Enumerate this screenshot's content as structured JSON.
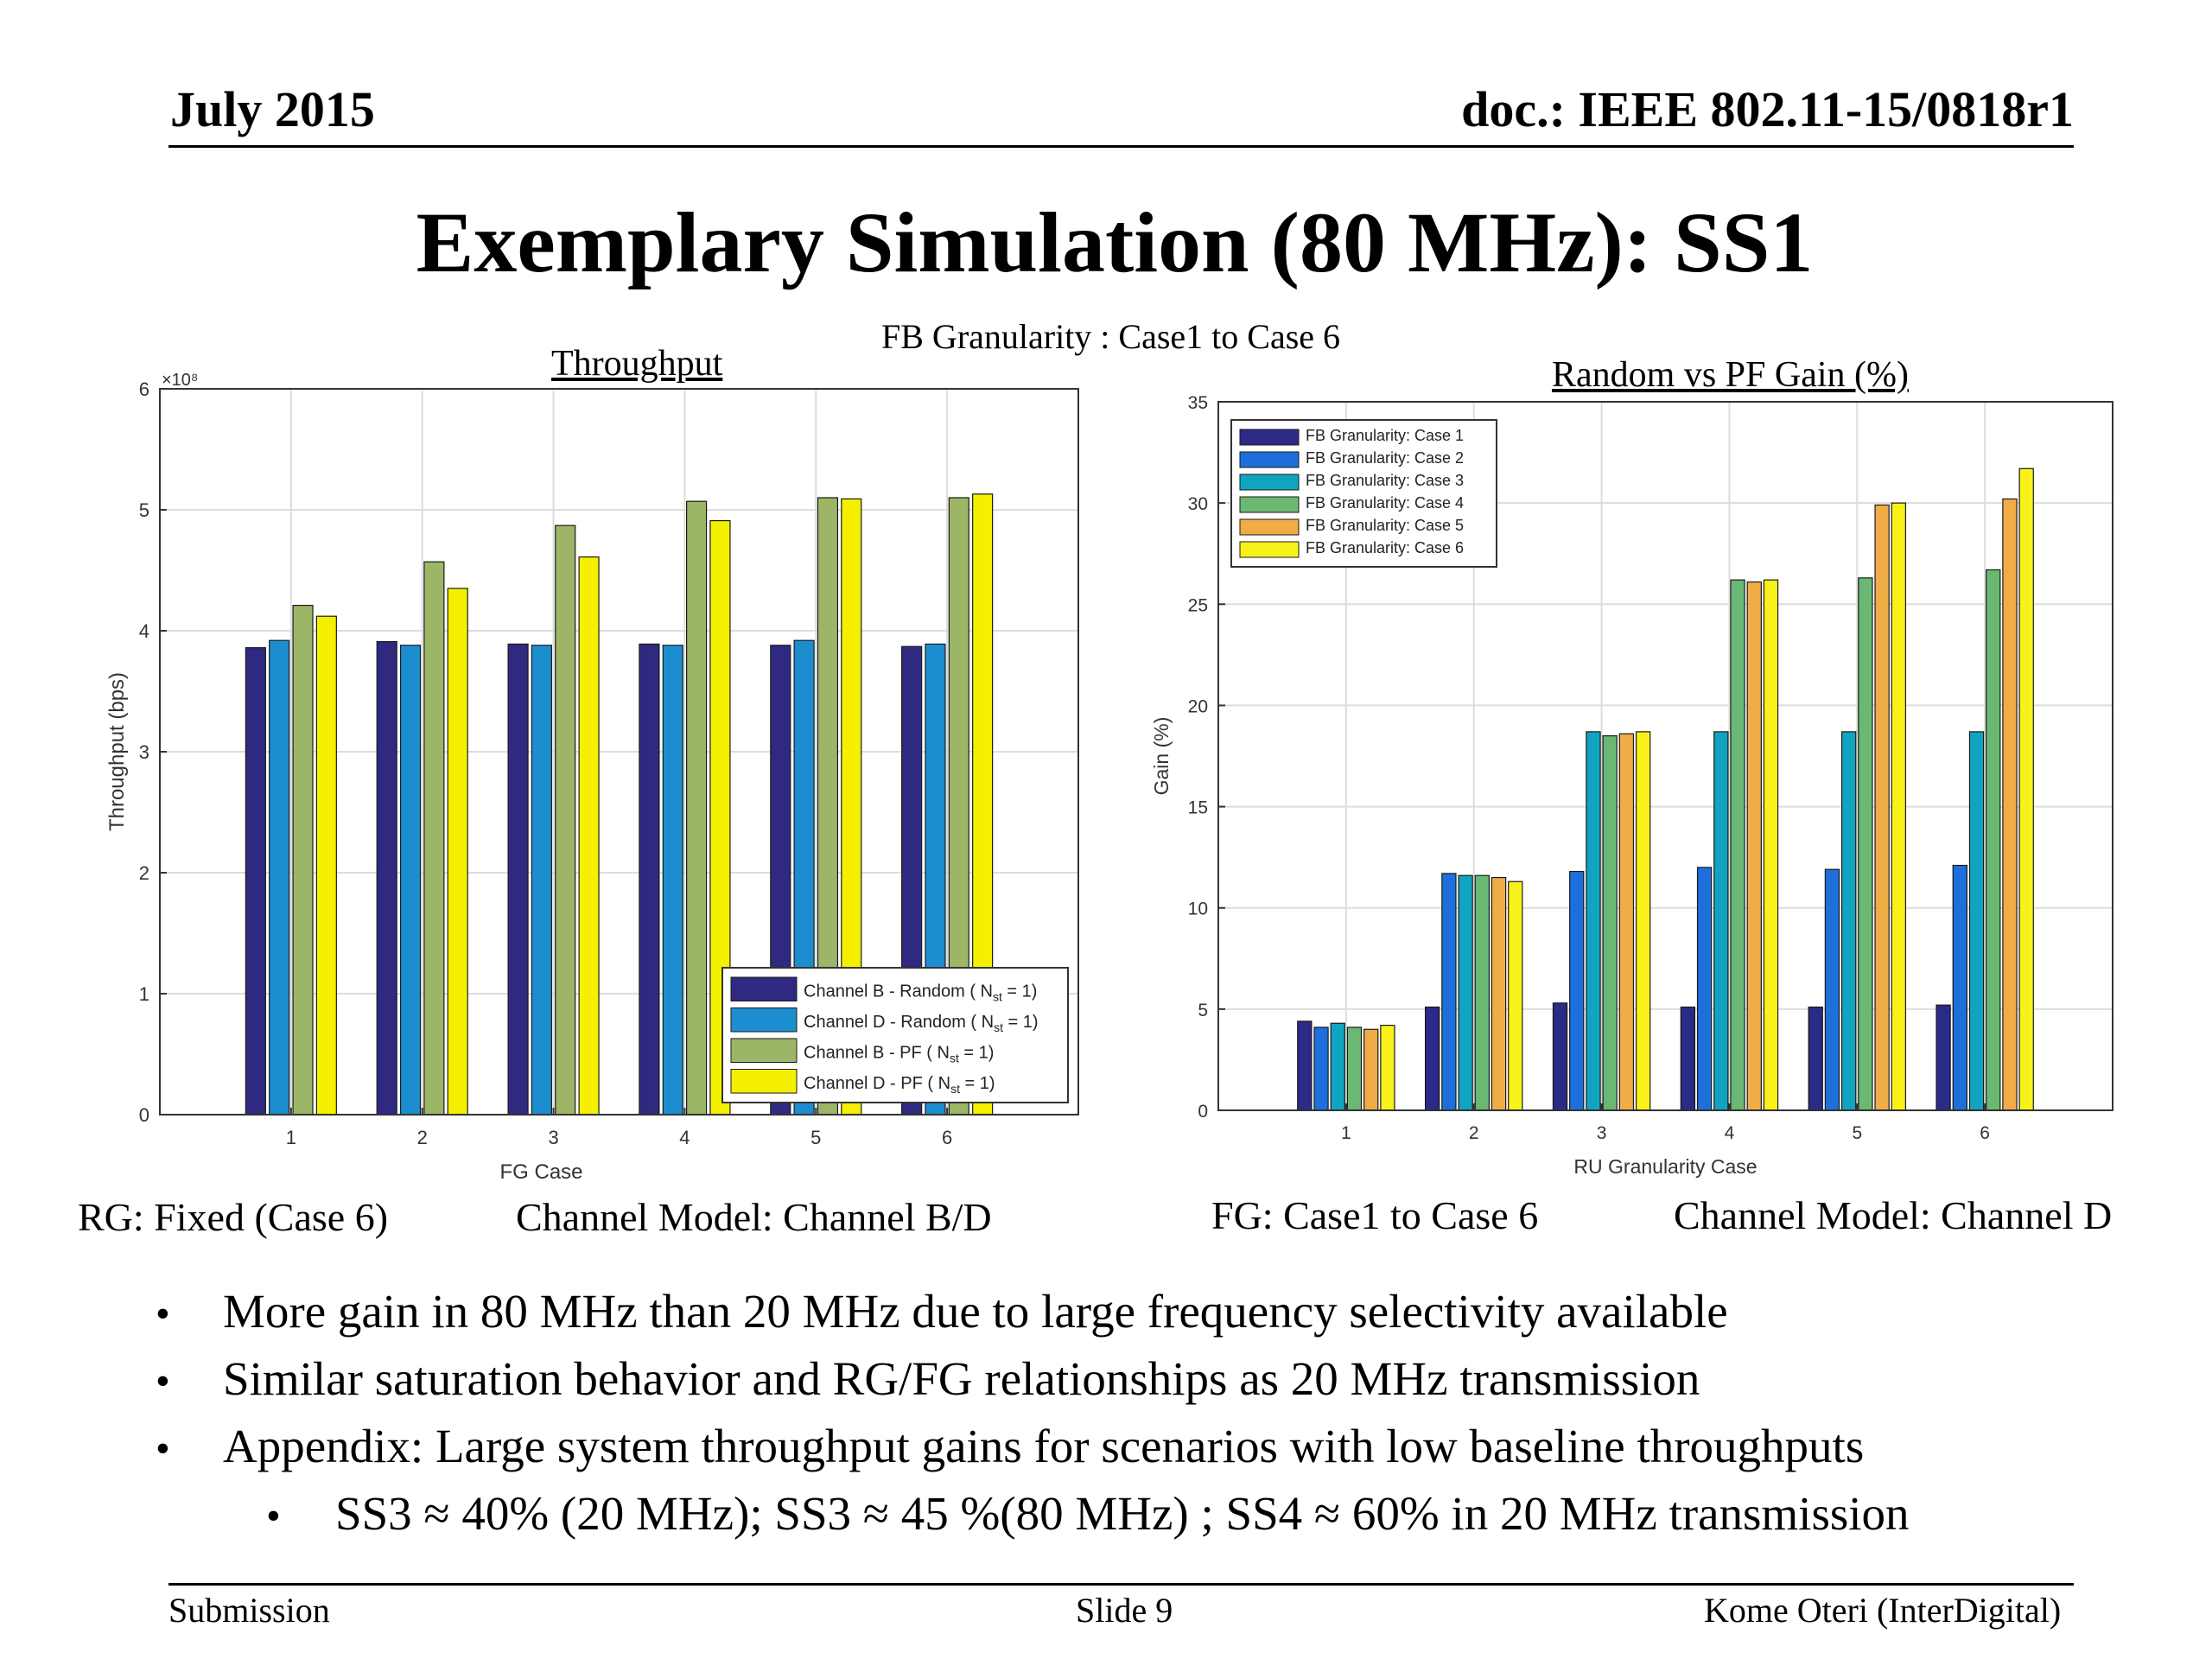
{
  "header": {
    "date": "July 2015",
    "doc": "doc.: IEEE 802.11-15/0818r1"
  },
  "slide": {
    "title": "Exemplary Simulation (80 MHz): SS1",
    "fb_note": "FB Granularity : Case1 to Case 6",
    "captions": {
      "left_rg": "RG: Fixed (Case 6)",
      "left_model": "Channel Model: Channel B/D",
      "right_fg": "FG: Case1 to Case 6",
      "right_model": "Channel Model: Channel D"
    },
    "bullets": [
      "More gain in 80 MHz than 20 MHz  due to large frequency selectivity available",
      "Similar saturation behavior and RG/FG relationships as 20 MHz transmission",
      "Appendix: Large system throughput gains for scenarios with low baseline throughputs"
    ],
    "sub_bullet": "SS3 ≈ 40% (20 MHz); SS3 ≈ 45 %(80 MHz) ; SS4 ≈ 60% in 20 MHz transmission"
  },
  "footer": {
    "left": "Submission",
    "center": "Slide 9",
    "right": "Kome Oteri (InterDigital)"
  },
  "chart_data": [
    {
      "type": "bar",
      "title": "Throughput",
      "xlabel": "FG   Case",
      "ylabel": "Throughput      (bps)",
      "exponent_label": "×10⁸",
      "ylim": [
        0,
        6
      ],
      "yticks": [
        "0",
        "1",
        "2",
        "3",
        "4",
        "5",
        "6"
      ],
      "categories": [
        "1",
        "2",
        "3",
        "4",
        "5",
        "6"
      ],
      "grid": true,
      "legend_position": "bottom-right",
      "series": [
        {
          "name": "Channel B - Random ( N",
          "sub": "st",
          "tail": " = 1)",
          "color": "#2f2a80",
          "values": [
            3.86,
            3.91,
            3.89,
            3.89,
            3.88,
            3.87
          ]
        },
        {
          "name": "Channel D - Random ( N",
          "sub": "st",
          "tail": " = 1)",
          "color": "#1c8ed0",
          "values": [
            3.92,
            3.88,
            3.88,
            3.88,
            3.92,
            3.89
          ]
        },
        {
          "name": "Channel B - PF ( N",
          "sub": "st",
          "tail": " = 1)",
          "color": "#9cb566",
          "values": [
            4.21,
            4.57,
            4.87,
            5.07,
            5.1,
            5.1
          ]
        },
        {
          "name": "Channel D - PF ( N",
          "sub": "st",
          "tail": " = 1)",
          "color": "#f4f000",
          "values": [
            4.12,
            4.35,
            4.61,
            4.91,
            5.09,
            5.13
          ]
        }
      ]
    },
    {
      "type": "bar",
      "title": "Random vs PF Gain  (%)",
      "xlabel": "RU Granularity Case",
      "ylabel": "Gain (%)",
      "ylim": [
        0,
        35
      ],
      "yticks": [
        "0",
        "5",
        "10",
        "15",
        "20",
        "25",
        "30",
        "35"
      ],
      "categories": [
        "1",
        "2",
        "3",
        "4",
        "5",
        "6"
      ],
      "grid": true,
      "legend_position": "top-left",
      "series": [
        {
          "name": "FB Granularity: Case 1",
          "color": "#2b2a86",
          "values": [
            4.4,
            5.1,
            5.3,
            5.1,
            5.1,
            5.2
          ]
        },
        {
          "name": "FB Granularity: Case 2",
          "color": "#1e6fdc",
          "values": [
            4.1,
            11.7,
            11.8,
            12.0,
            11.9,
            12.1
          ]
        },
        {
          "name": "FB Granularity: Case 3",
          "color": "#10a4c0",
          "values": [
            4.3,
            11.6,
            18.7,
            18.7,
            18.7,
            18.7
          ]
        },
        {
          "name": "FB Granularity: Case 4",
          "color": "#6ab873",
          "values": [
            4.1,
            11.6,
            18.5,
            26.2,
            26.3,
            26.7
          ]
        },
        {
          "name": "FB Granularity: Case 5",
          "color": "#f0ac46",
          "values": [
            4.0,
            11.5,
            18.6,
            26.1,
            29.9,
            30.2
          ]
        },
        {
          "name": "FB Granularity: Case 6",
          "color": "#f8f21a",
          "values": [
            4.2,
            11.3,
            18.7,
            26.2,
            30.0,
            31.7
          ]
        }
      ]
    }
  ]
}
